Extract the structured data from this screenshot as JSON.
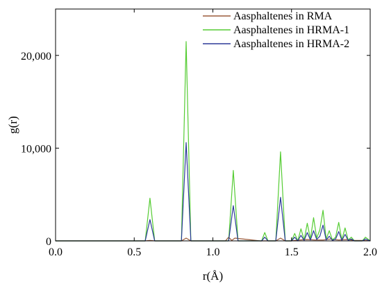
{
  "chart_data": {
    "type": "line",
    "xlabel": "r(Å)",
    "ylabel": "g(r)",
    "xlim": [
      0.0,
      2.0
    ],
    "ylim": [
      0,
      25000
    ],
    "x_ticks": [
      0.0,
      0.5,
      1.0,
      1.5,
      2.0
    ],
    "x_tick_labels": [
      "0.0",
      "0.5",
      "1.0",
      "1.5",
      "2.0"
    ],
    "y_ticks": [
      0,
      10000,
      20000
    ],
    "y_tick_labels": [
      "0",
      "10,000",
      "20,000"
    ],
    "legend_position": "top-right",
    "grid": false,
    "series": [
      {
        "name": "Aasphaltenes in RMA",
        "color": "#9b5a3a",
        "x": [
          0.0,
          0.57,
          0.6,
          0.63,
          0.8,
          0.83,
          0.86,
          1.08,
          1.1,
          1.12,
          1.14,
          1.3,
          1.4,
          1.43,
          1.46,
          1.5,
          1.55,
          1.6,
          1.65,
          1.7,
          1.75,
          1.8,
          1.85,
          1.9,
          1.96,
          2.0
        ],
        "y": [
          0,
          0,
          50,
          0,
          0,
          300,
          0,
          0,
          400,
          50,
          300,
          0,
          0,
          300,
          0,
          0,
          100,
          150,
          100,
          100,
          200,
          100,
          150,
          50,
          50,
          0
        ]
      },
      {
        "name": "Aasphaltenes in HRMA-1",
        "color": "#55cc33",
        "x": [
          0.0,
          0.57,
          0.6,
          0.63,
          0.8,
          0.83,
          0.86,
          1.1,
          1.13,
          1.16,
          1.31,
          1.33,
          1.35,
          1.4,
          1.43,
          1.46,
          1.5,
          1.52,
          1.54,
          1.56,
          1.58,
          1.6,
          1.62,
          1.64,
          1.66,
          1.68,
          1.7,
          1.72,
          1.74,
          1.76,
          1.78,
          1.8,
          1.82,
          1.84,
          1.86,
          1.88,
          1.9,
          1.95,
          1.97,
          2.0
        ],
        "y": [
          0,
          0,
          4600,
          0,
          0,
          21500,
          0,
          0,
          7600,
          0,
          0,
          900,
          0,
          0,
          9600,
          0,
          0,
          800,
          0,
          1300,
          100,
          1900,
          200,
          2500,
          300,
          1200,
          3300,
          200,
          1100,
          100,
          400,
          2000,
          100,
          1400,
          100,
          400,
          0,
          0,
          400,
          0
        ]
      },
      {
        "name": "Aasphaltenes in HRMA-2",
        "color": "#2b3a99",
        "x": [
          0.0,
          0.57,
          0.6,
          0.63,
          0.8,
          0.83,
          0.86,
          1.1,
          1.13,
          1.16,
          1.31,
          1.33,
          1.35,
          1.4,
          1.43,
          1.46,
          1.5,
          1.52,
          1.54,
          1.56,
          1.58,
          1.6,
          1.62,
          1.64,
          1.66,
          1.68,
          1.7,
          1.72,
          1.74,
          1.76,
          1.78,
          1.8,
          1.82,
          1.84,
          1.86,
          1.88,
          1.9,
          1.95,
          1.97,
          2.0
        ],
        "y": [
          0,
          0,
          2300,
          0,
          0,
          10600,
          0,
          0,
          3800,
          0,
          0,
          400,
          0,
          0,
          4700,
          0,
          0,
          400,
          0,
          600,
          50,
          900,
          100,
          1100,
          150,
          500,
          1700,
          100,
          500,
          50,
          200,
          1000,
          50,
          700,
          50,
          200,
          0,
          0,
          200,
          0
        ]
      }
    ]
  }
}
